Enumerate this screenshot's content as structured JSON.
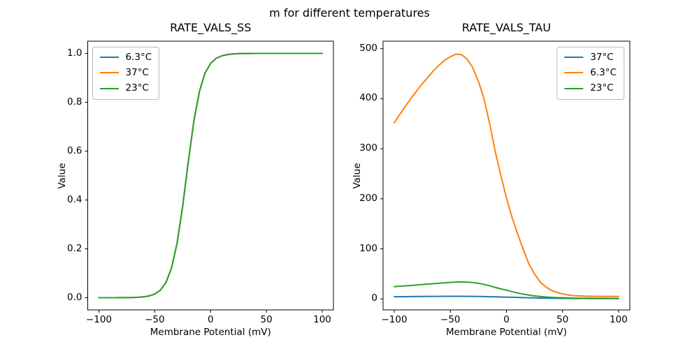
{
  "suptitle": "m for different temperatures",
  "palette": {
    "blue": "#1f77b4",
    "orange": "#ff7f0e",
    "green": "#2ca02c",
    "spine": "#000000",
    "background": "#ffffff",
    "legend_border": "#b7b7b7"
  },
  "chart_data": [
    {
      "type": "line",
      "title": "RATE_VALS_SS",
      "xlabel": "Membrane Potential (mV)",
      "ylabel": "Value",
      "xlim": [
        -110,
        110
      ],
      "ylim": [
        -0.05,
        1.05
      ],
      "grid": false,
      "xticks": [
        "−100",
        "−50",
        "0",
        "50",
        "100"
      ],
      "xtick_values": [
        -100,
        -50,
        0,
        50,
        100
      ],
      "yticks": [
        "0.0",
        "0.2",
        "0.4",
        "0.6",
        "0.8",
        "1.0"
      ],
      "ytick_values": [
        0.0,
        0.2,
        0.4,
        0.6,
        0.8,
        1.0
      ],
      "legend": {
        "loc": "upper left",
        "entries": [
          "6.3°C",
          "37°C",
          "23°C"
        ]
      },
      "x": [
        -100,
        -95,
        -90,
        -85,
        -80,
        -75,
        -70,
        -65,
        -60,
        -55,
        -50,
        -45,
        -40,
        -35,
        -30,
        -25,
        -20,
        -15,
        -10,
        -5,
        0,
        5,
        10,
        15,
        20,
        25,
        30,
        35,
        40,
        45,
        50,
        55,
        60,
        65,
        70,
        75,
        80,
        85,
        90,
        95,
        100
      ],
      "series": [
        {
          "name": "6.3°C",
          "color": "#1f77b4",
          "values": [
            0.0,
            0.0,
            0.0,
            0.0001,
            0.0002,
            0.0004,
            0.0008,
            0.0017,
            0.0035,
            0.0072,
            0.0149,
            0.0306,
            0.0617,
            0.1208,
            0.2227,
            0.374,
            0.555,
            0.722,
            0.844,
            0.919,
            0.959,
            0.98,
            0.99,
            0.995,
            0.998,
            0.999,
            0.9995,
            0.9998,
            0.9999,
            1.0,
            1.0,
            1.0,
            1.0,
            1.0,
            1.0,
            1.0,
            1.0,
            1.0,
            1.0,
            1.0,
            1.0
          ]
        },
        {
          "name": "37°C",
          "color": "#ff7f0e",
          "values": [
            0.0,
            0.0,
            0.0,
            0.0001,
            0.0002,
            0.0004,
            0.0008,
            0.0017,
            0.0035,
            0.0072,
            0.0149,
            0.0306,
            0.0617,
            0.1208,
            0.2227,
            0.374,
            0.555,
            0.722,
            0.844,
            0.919,
            0.959,
            0.98,
            0.99,
            0.995,
            0.998,
            0.999,
            0.9995,
            0.9998,
            0.9999,
            1.0,
            1.0,
            1.0,
            1.0,
            1.0,
            1.0,
            1.0,
            1.0,
            1.0,
            1.0,
            1.0,
            1.0
          ]
        },
        {
          "name": "23°C",
          "color": "#2ca02c",
          "values": [
            0.0,
            0.0,
            0.0,
            0.0001,
            0.0002,
            0.0004,
            0.0008,
            0.0017,
            0.0035,
            0.0072,
            0.0149,
            0.0306,
            0.0617,
            0.1208,
            0.2227,
            0.374,
            0.555,
            0.722,
            0.844,
            0.919,
            0.959,
            0.98,
            0.99,
            0.995,
            0.998,
            0.999,
            0.9995,
            0.9998,
            0.9999,
            1.0,
            1.0,
            1.0,
            1.0,
            1.0,
            1.0,
            1.0,
            1.0,
            1.0,
            1.0,
            1.0,
            1.0
          ]
        }
      ]
    },
    {
      "type": "line",
      "title": "RATE_VALS_TAU",
      "xlabel": "Membrane Potential (mV)",
      "ylabel": "Value",
      "xlim": [
        -110,
        110
      ],
      "ylim": [
        -22,
        515
      ],
      "grid": false,
      "xticks": [
        "−100",
        "−50",
        "0",
        "50",
        "100"
      ],
      "xtick_values": [
        -100,
        -50,
        0,
        50,
        100
      ],
      "yticks": [
        "0",
        "100",
        "200",
        "300",
        "400",
        "500"
      ],
      "ytick_values": [
        0,
        100,
        200,
        300,
        400,
        500
      ],
      "legend": {
        "loc": "upper right",
        "entries": [
          "37°C",
          "6.3°C",
          "23°C"
        ]
      },
      "x": [
        -100,
        -95,
        -90,
        -85,
        -80,
        -75,
        -70,
        -65,
        -60,
        -55,
        -50,
        -45,
        -40,
        -35,
        -30,
        -25,
        -20,
        -15,
        -10,
        -5,
        0,
        5,
        10,
        15,
        20,
        25,
        30,
        35,
        40,
        45,
        50,
        55,
        60,
        65,
        70,
        75,
        80,
        85,
        90,
        95,
        100
      ],
      "series": [
        {
          "name": "37°C",
          "color": "#1f77b4",
          "values": [
            4.3,
            4.4,
            4.5,
            4.65,
            4.8,
            4.9,
            5.0,
            5.05,
            5.1,
            5.15,
            5.2,
            5.2,
            5.2,
            5.1,
            5.0,
            4.8,
            4.6,
            4.35,
            4.1,
            3.8,
            3.5,
            3.2,
            2.9,
            2.6,
            2.3,
            2.05,
            1.8,
            1.6,
            1.4,
            1.25,
            1.1,
            1.0,
            0.9,
            0.85,
            0.8,
            0.75,
            0.7,
            0.68,
            0.65,
            0.62,
            0.6
          ]
        },
        {
          "name": "6.3°C",
          "color": "#ff7f0e",
          "values": [
            352,
            369,
            385,
            401,
            416,
            430,
            443,
            456,
            467,
            477,
            484,
            489,
            488,
            479,
            462,
            435,
            400,
            351,
            295,
            247,
            202,
            163,
            130,
            99,
            70,
            50,
            34,
            24,
            17,
            13,
            10,
            8,
            6.5,
            6.0,
            5.5,
            5.3,
            5.2,
            5.1,
            5.1,
            5.0,
            5.0
          ]
        },
        {
          "name": "23°C",
          "color": "#2ca02c",
          "values": [
            24.5,
            25.3,
            26.1,
            26.9,
            27.8,
            28.7,
            29.6,
            30.5,
            31.4,
            32.2,
            33.0,
            33.6,
            33.9,
            33.7,
            32.8,
            31.2,
            29.0,
            26.2,
            23.0,
            20.0,
            17.5,
            14.5,
            12.0,
            9.5,
            7.6,
            6.0,
            4.8,
            3.8,
            3.1,
            2.6,
            2.2,
            1.9,
            1.7,
            1.5,
            1.4,
            1.3,
            1.25,
            1.2,
            1.15,
            1.1,
            1.1
          ]
        }
      ]
    }
  ]
}
